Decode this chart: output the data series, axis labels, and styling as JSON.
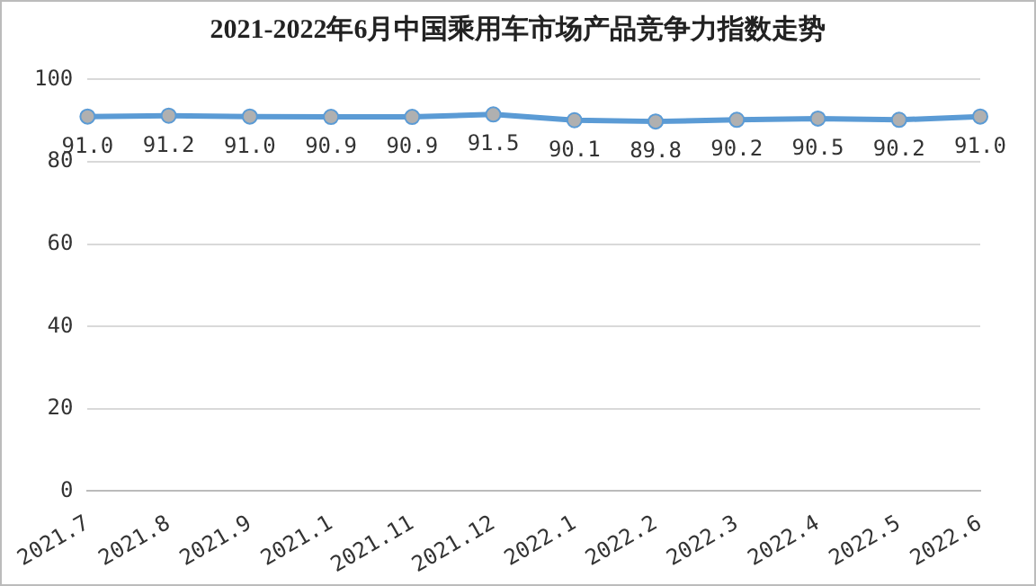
{
  "chart_data": {
    "type": "line",
    "title": "2021-2022年6月中国乘用车市场产品竞争力指数走势",
    "categories": [
      "2021.7",
      "2021.8",
      "2021.9",
      "2021.1",
      "2021.11",
      "2021.12",
      "2022.1",
      "2022.2",
      "2022.3",
      "2022.4",
      "2022.5",
      "2022.6"
    ],
    "series": [
      {
        "color": "#5b9bd5",
        "values": [
          91.0,
          91.2,
          91.0,
          90.9,
          90.9,
          91.5,
          90.1,
          89.8,
          90.2,
          90.5,
          90.2,
          91.0
        ],
        "value_labels": [
          "91.0",
          "91.2",
          "91.0",
          "90.9",
          "90.9",
          "91.5",
          "90.1",
          "89.8",
          "90.2",
          "90.5",
          "90.2",
          "91.0"
        ]
      }
    ],
    "ylim": [
      0,
      100
    ],
    "yticks": [
      0,
      20,
      40,
      60,
      80,
      100
    ],
    "grid": "y",
    "legend": false,
    "marker": "circle",
    "line_style": "solid"
  }
}
